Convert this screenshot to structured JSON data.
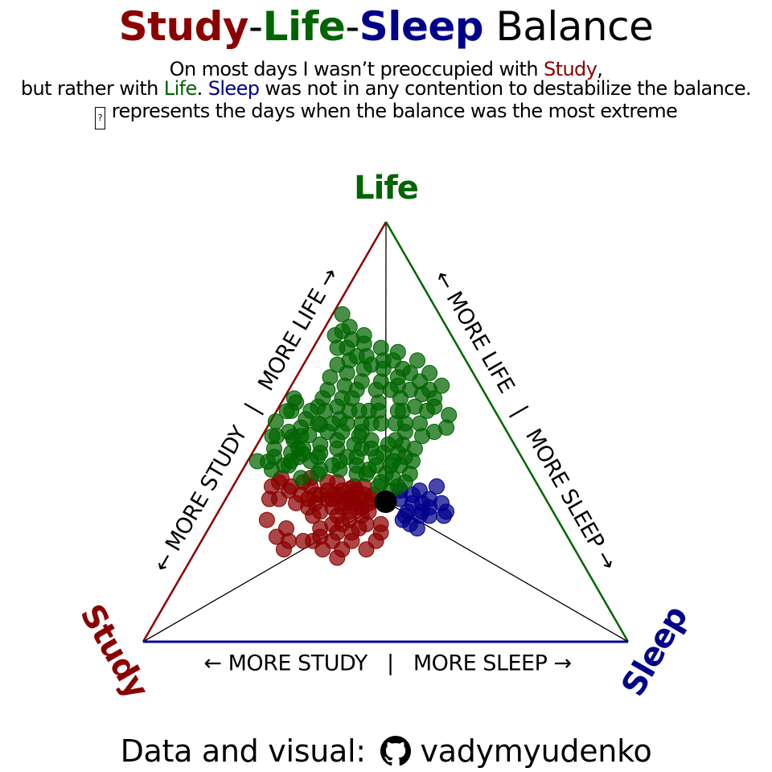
{
  "colors": {
    "study": "#8b0000",
    "life": "#006400",
    "sleep": "#00008b",
    "center": "#000000"
  },
  "title": {
    "study": "Study",
    "sep1": "-",
    "life": "Life",
    "sep2": "-",
    "sleep": "Sleep",
    "rest": " Balance"
  },
  "subtitle": {
    "l1_a": "On most days I wasn’t preoccupied with ",
    "l1_study": "Study",
    "l1_b": ",",
    "l2_a": "but rather with ",
    "l2_life": "Life",
    "l2_b": ". ",
    "l2_sleep": "Sleep",
    "l2_c": " was not in any contention to destabilize the balance.",
    "l3_glyph": "?",
    "l3_text": "represents the days when the balance was the most extreme"
  },
  "chart_data": {
    "type": "scatter",
    "subtype": "ternary",
    "vertices": {
      "top": "Life",
      "left": "Study",
      "right": "Sleep"
    },
    "edge_labels": {
      "left": "← MORE STUDY   |   MORE LIFE →",
      "right": "← MORE LIFE   |   MORE SLEEP →",
      "bottom": "← MORE STUDY   |   MORE SLEEP →"
    },
    "center_point": {
      "study": 0.3333,
      "life": 0.3333,
      "sleep": 0.3333
    },
    "series": [
      {
        "key": "study",
        "points": [
          [
            0.4,
            0.345
          ],
          [
            0.38,
            0.36
          ],
          [
            0.39,
            0.35
          ],
          [
            0.42,
            0.33
          ],
          [
            0.37,
            0.35
          ],
          [
            0.43,
            0.32
          ],
          [
            0.36,
            0.37
          ],
          [
            0.4,
            0.33
          ],
          [
            0.41,
            0.36
          ],
          [
            0.38,
            0.34
          ],
          [
            0.44,
            0.34
          ],
          [
            0.39,
            0.365
          ],
          [
            0.37,
            0.33
          ],
          [
            0.35,
            0.35
          ],
          [
            0.42,
            0.35
          ],
          [
            0.45,
            0.34
          ],
          [
            0.46,
            0.35
          ],
          [
            0.47,
            0.35
          ],
          [
            0.43,
            0.35
          ],
          [
            0.4,
            0.32
          ],
          [
            0.36,
            0.34
          ],
          [
            0.41,
            0.34
          ],
          [
            0.44,
            0.36
          ],
          [
            0.38,
            0.37
          ],
          [
            0.45,
            0.32
          ],
          [
            0.48,
            0.33
          ],
          [
            0.49,
            0.34
          ],
          [
            0.5,
            0.35
          ],
          [
            0.52,
            0.36
          ],
          [
            0.55,
            0.37
          ],
          [
            0.53,
            0.38
          ],
          [
            0.51,
            0.37
          ],
          [
            0.52,
            0.33
          ],
          [
            0.55,
            0.34
          ],
          [
            0.5,
            0.32
          ],
          [
            0.47,
            0.37
          ],
          [
            0.48,
            0.38
          ],
          [
            0.46,
            0.39
          ],
          [
            0.43,
            0.38
          ],
          [
            0.41,
            0.38
          ],
          [
            0.52,
            0.39
          ],
          [
            0.42,
            0.31
          ],
          [
            0.45,
            0.3
          ],
          [
            0.48,
            0.31
          ],
          [
            0.5,
            0.3
          ],
          [
            0.47,
            0.28
          ],
          [
            0.45,
            0.28
          ],
          [
            0.43,
            0.29
          ],
          [
            0.4,
            0.3
          ],
          [
            0.38,
            0.31
          ],
          [
            0.42,
            0.27
          ],
          [
            0.44,
            0.26
          ],
          [
            0.47,
            0.26
          ],
          [
            0.5,
            0.27
          ],
          [
            0.4,
            0.28
          ],
          [
            0.39,
            0.32
          ],
          [
            0.51,
            0.25
          ],
          [
            0.49,
            0.24
          ],
          [
            0.53,
            0.24
          ],
          [
            0.55,
            0.24
          ],
          [
            0.52,
            0.22
          ],
          [
            0.6,
            0.22
          ],
          [
            0.57,
            0.27
          ],
          [
            0.6,
            0.25
          ],
          [
            0.58,
            0.24
          ],
          [
            0.45,
            0.24
          ],
          [
            0.48,
            0.22
          ],
          [
            0.5,
            0.2
          ],
          [
            0.43,
            0.22
          ],
          [
            0.4,
            0.24
          ],
          [
            0.38,
            0.26
          ],
          [
            0.37,
            0.28
          ],
          [
            0.57,
            0.34
          ],
          [
            0.6,
            0.29
          ]
        ]
      },
      {
        "key": "sleep",
        "points": [
          [
            0.28,
            0.33
          ],
          [
            0.27,
            0.35
          ],
          [
            0.3,
            0.34
          ],
          [
            0.31,
            0.3
          ],
          [
            0.27,
            0.31
          ],
          [
            0.26,
            0.33
          ],
          [
            0.31,
            0.28
          ],
          [
            0.24,
            0.34
          ],
          [
            0.22,
            0.33
          ],
          [
            0.28,
            0.3
          ],
          [
            0.26,
            0.3
          ],
          [
            0.3,
            0.27
          ],
          [
            0.32,
            0.29
          ],
          [
            0.23,
            0.3
          ],
          [
            0.22,
            0.31
          ],
          [
            0.21,
            0.37
          ],
          [
            0.25,
            0.36
          ],
          [
            0.29,
            0.36
          ],
          [
            0.3,
            0.31
          ],
          [
            0.25,
            0.32
          ]
        ]
      },
      {
        "key": "life",
        "points": [
          [
            0.3,
            0.5
          ],
          [
            0.29,
            0.48
          ],
          [
            0.27,
            0.52
          ],
          [
            0.26,
            0.47
          ],
          [
            0.28,
            0.45
          ],
          [
            0.3,
            0.44
          ],
          [
            0.32,
            0.46
          ],
          [
            0.31,
            0.42
          ],
          [
            0.33,
            0.41
          ],
          [
            0.28,
            0.42
          ],
          [
            0.27,
            0.43
          ],
          [
            0.25,
            0.45
          ],
          [
            0.24,
            0.48
          ],
          [
            0.25,
            0.52
          ],
          [
            0.26,
            0.55
          ],
          [
            0.23,
            0.57
          ],
          [
            0.22,
            0.52
          ],
          [
            0.22,
            0.6
          ],
          [
            0.2,
            0.62
          ],
          [
            0.18,
            0.58
          ],
          [
            0.2,
            0.55
          ],
          [
            0.24,
            0.55
          ],
          [
            0.21,
            0.5
          ],
          [
            0.23,
            0.47
          ],
          [
            0.24,
            0.44
          ],
          [
            0.26,
            0.42
          ],
          [
            0.3,
            0.4
          ],
          [
            0.32,
            0.38
          ],
          [
            0.29,
            0.39
          ],
          [
            0.34,
            0.4
          ],
          [
            0.35,
            0.42
          ],
          [
            0.36,
            0.44
          ],
          [
            0.34,
            0.44
          ],
          [
            0.33,
            0.47
          ],
          [
            0.36,
            0.48
          ],
          [
            0.37,
            0.46
          ],
          [
            0.38,
            0.43
          ],
          [
            0.39,
            0.41
          ],
          [
            0.36,
            0.4
          ],
          [
            0.37,
            0.5
          ],
          [
            0.35,
            0.52
          ],
          [
            0.38,
            0.52
          ],
          [
            0.4,
            0.47
          ],
          [
            0.41,
            0.45
          ],
          [
            0.42,
            0.44
          ],
          [
            0.4,
            0.42
          ],
          [
            0.43,
            0.41
          ],
          [
            0.44,
            0.4
          ],
          [
            0.45,
            0.46
          ],
          [
            0.45,
            0.48
          ],
          [
            0.47,
            0.45
          ],
          [
            0.49,
            0.42
          ],
          [
            0.48,
            0.39
          ],
          [
            0.44,
            0.43
          ],
          [
            0.3,
            0.55
          ],
          [
            0.28,
            0.58
          ],
          [
            0.26,
            0.6
          ],
          [
            0.24,
            0.62
          ],
          [
            0.22,
            0.65
          ],
          [
            0.2,
            0.66
          ],
          [
            0.17,
            0.67
          ],
          [
            0.18,
            0.65
          ],
          [
            0.15,
            0.67
          ],
          [
            0.16,
            0.63
          ],
          [
            0.19,
            0.6
          ],
          [
            0.14,
            0.65
          ],
          [
            0.13,
            0.64
          ],
          [
            0.12,
            0.62
          ],
          [
            0.17,
            0.61
          ],
          [
            0.15,
            0.6
          ],
          [
            0.13,
            0.59
          ],
          [
            0.16,
            0.56
          ],
          [
            0.19,
            0.55
          ],
          [
            0.2,
            0.52
          ],
          [
            0.17,
            0.52
          ],
          [
            0.14,
            0.55
          ],
          [
            0.12,
            0.56
          ],
          [
            0.11,
            0.58
          ],
          [
            0.1,
            0.54
          ],
          [
            0.12,
            0.51
          ],
          [
            0.15,
            0.5
          ],
          [
            0.18,
            0.49
          ],
          [
            0.21,
            0.46
          ],
          [
            0.23,
            0.43
          ],
          [
            0.25,
            0.4
          ],
          [
            0.27,
            0.38
          ],
          [
            0.29,
            0.37
          ],
          [
            0.31,
            0.36
          ],
          [
            0.33,
            0.37
          ],
          [
            0.3,
            0.46
          ],
          [
            0.29,
            0.52
          ],
          [
            0.28,
            0.55
          ],
          [
            0.32,
            0.52
          ],
          [
            0.34,
            0.5
          ],
          [
            0.31,
            0.49
          ],
          [
            0.33,
            0.53
          ],
          [
            0.35,
            0.55
          ],
          [
            0.32,
            0.56
          ],
          [
            0.3,
            0.58
          ],
          [
            0.28,
            0.61
          ],
          [
            0.26,
            0.64
          ],
          [
            0.24,
            0.67
          ],
          [
            0.27,
            0.66
          ],
          [
            0.23,
            0.7
          ],
          [
            0.21,
            0.72
          ],
          [
            0.19,
            0.71
          ],
          [
            0.2,
            0.68
          ],
          [
            0.22,
            0.68
          ],
          [
            0.25,
            0.7
          ],
          [
            0.2,
            0.75
          ],
          [
            0.22,
            0.74
          ],
          [
            0.24,
            0.73
          ],
          [
            0.18,
            0.73
          ],
          [
            0.16,
            0.7
          ],
          [
            0.13,
            0.69
          ],
          [
            0.1,
            0.67
          ],
          [
            0.09,
            0.64
          ],
          [
            0.08,
            0.61
          ],
          [
            0.11,
            0.6
          ],
          [
            0.3,
            0.63
          ],
          [
            0.32,
            0.6
          ],
          [
            0.34,
            0.58
          ],
          [
            0.36,
            0.56
          ],
          [
            0.38,
            0.55
          ],
          [
            0.4,
            0.53
          ],
          [
            0.42,
            0.51
          ],
          [
            0.43,
            0.49
          ],
          [
            0.44,
            0.46
          ],
          [
            0.46,
            0.44
          ],
          [
            0.48,
            0.43
          ],
          [
            0.5,
            0.42
          ],
          [
            0.45,
            0.5
          ],
          [
            0.42,
            0.55
          ],
          [
            0.4,
            0.57
          ],
          [
            0.44,
            0.58
          ],
          [
            0.47,
            0.54
          ],
          [
            0.48,
            0.49
          ],
          [
            0.5,
            0.46
          ],
          [
            0.51,
            0.44
          ],
          [
            0.53,
            0.41
          ],
          [
            0.41,
            0.61
          ],
          [
            0.46,
            0.63
          ],
          [
            0.55,
            0.43
          ],
          [
            0.55,
            0.49
          ],
          [
            0.48,
            0.58
          ],
          [
            0.43,
            0.67
          ],
          [
            0.5,
            0.6
          ],
          [
            0.5,
            0.52
          ],
          [
            0.2,
            0.78
          ]
        ]
      }
    ]
  },
  "footer": {
    "text": "Data and visual: ",
    "handle": "vadymyudenko",
    "icon": "github-icon"
  }
}
